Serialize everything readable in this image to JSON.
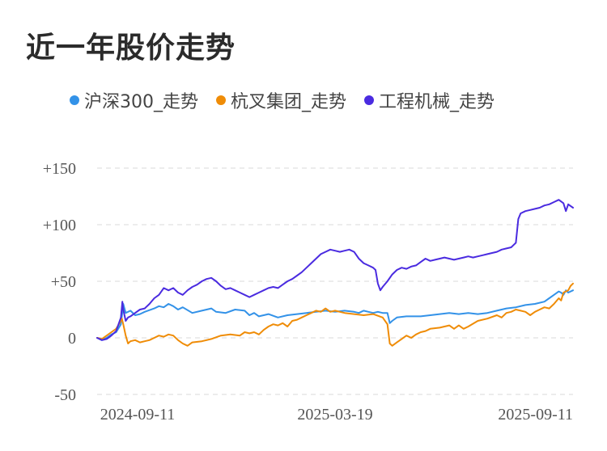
{
  "title": "近一年股价走势",
  "chart_data": {
    "type": "line",
    "y_ticks": [
      {
        "value": 150,
        "label": "+150"
      },
      {
        "value": 100,
        "label": "+100"
      },
      {
        "value": 50,
        "label": "+50"
      },
      {
        "value": 0,
        "label": "0"
      },
      {
        "value": -50,
        "label": "-50"
      }
    ],
    "x_ticks": [
      {
        "x": 0.085,
        "label": "2024-09-11"
      },
      {
        "x": 0.5,
        "label": "2025-03-19"
      },
      {
        "x": 1.0,
        "label": "2025-09-11"
      }
    ],
    "ylim": [
      -50,
      150
    ],
    "xlim": [
      0,
      1
    ],
    "grid": true,
    "legend_position": "top",
    "series": [
      {
        "name": "沪深300_走势",
        "color": "#3392e8",
        "points": [
          [
            0,
            0
          ],
          [
            0.01,
            -2
          ],
          [
            0.02,
            0
          ],
          [
            0.03,
            3
          ],
          [
            0.04,
            5
          ],
          [
            0.05,
            12
          ],
          [
            0.055,
            30
          ],
          [
            0.06,
            22
          ],
          [
            0.07,
            24
          ],
          [
            0.08,
            20
          ],
          [
            0.09,
            21
          ],
          [
            0.1,
            23
          ],
          [
            0.12,
            26
          ],
          [
            0.13,
            28
          ],
          [
            0.14,
            27
          ],
          [
            0.15,
            30
          ],
          [
            0.16,
            28
          ],
          [
            0.17,
            25
          ],
          [
            0.18,
            27
          ],
          [
            0.2,
            22
          ],
          [
            0.22,
            24
          ],
          [
            0.24,
            26
          ],
          [
            0.25,
            23
          ],
          [
            0.27,
            22
          ],
          [
            0.29,
            25
          ],
          [
            0.31,
            24
          ],
          [
            0.32,
            20
          ],
          [
            0.33,
            22
          ],
          [
            0.34,
            19
          ],
          [
            0.36,
            21
          ],
          [
            0.38,
            18
          ],
          [
            0.4,
            20
          ],
          [
            0.42,
            21
          ],
          [
            0.44,
            22
          ],
          [
            0.46,
            23
          ],
          [
            0.48,
            24
          ],
          [
            0.5,
            23
          ],
          [
            0.52,
            24
          ],
          [
            0.54,
            23
          ],
          [
            0.55,
            22
          ],
          [
            0.56,
            24
          ],
          [
            0.57,
            23
          ],
          [
            0.58,
            22
          ],
          [
            0.59,
            23
          ],
          [
            0.6,
            22
          ],
          [
            0.61,
            22
          ],
          [
            0.615,
            13
          ],
          [
            0.62,
            15
          ],
          [
            0.63,
            18
          ],
          [
            0.65,
            19
          ],
          [
            0.68,
            19
          ],
          [
            0.7,
            20
          ],
          [
            0.72,
            21
          ],
          [
            0.74,
            22
          ],
          [
            0.76,
            21
          ],
          [
            0.78,
            22
          ],
          [
            0.8,
            21
          ],
          [
            0.82,
            22
          ],
          [
            0.84,
            24
          ],
          [
            0.86,
            26
          ],
          [
            0.88,
            27
          ],
          [
            0.9,
            29
          ],
          [
            0.92,
            30
          ],
          [
            0.94,
            32
          ],
          [
            0.95,
            35
          ],
          [
            0.96,
            38
          ],
          [
            0.97,
            41
          ],
          [
            0.975,
            40
          ],
          [
            0.98,
            38
          ],
          [
            0.985,
            42
          ],
          [
            0.99,
            40
          ],
          [
            1.0,
            42
          ]
        ]
      },
      {
        "name": "杭叉集团_走势",
        "color": "#ef8c07",
        "points": [
          [
            0,
            0
          ],
          [
            0.01,
            -1
          ],
          [
            0.02,
            2
          ],
          [
            0.03,
            5
          ],
          [
            0.04,
            8
          ],
          [
            0.05,
            15
          ],
          [
            0.052,
            17
          ],
          [
            0.055,
            12
          ],
          [
            0.06,
            2
          ],
          [
            0.065,
            -5
          ],
          [
            0.07,
            -3
          ],
          [
            0.08,
            -2
          ],
          [
            0.09,
            -4
          ],
          [
            0.1,
            -3
          ],
          [
            0.11,
            -2
          ],
          [
            0.12,
            0
          ],
          [
            0.13,
            2
          ],
          [
            0.14,
            1
          ],
          [
            0.15,
            3
          ],
          [
            0.16,
            2
          ],
          [
            0.17,
            -2
          ],
          [
            0.18,
            -5
          ],
          [
            0.19,
            -7
          ],
          [
            0.2,
            -4
          ],
          [
            0.22,
            -3
          ],
          [
            0.24,
            -1
          ],
          [
            0.26,
            2
          ],
          [
            0.28,
            3
          ],
          [
            0.3,
            2
          ],
          [
            0.31,
            5
          ],
          [
            0.32,
            4
          ],
          [
            0.33,
            5
          ],
          [
            0.34,
            3
          ],
          [
            0.35,
            7
          ],
          [
            0.36,
            10
          ],
          [
            0.37,
            12
          ],
          [
            0.38,
            11
          ],
          [
            0.39,
            13
          ],
          [
            0.4,
            10
          ],
          [
            0.41,
            15
          ],
          [
            0.42,
            16
          ],
          [
            0.43,
            18
          ],
          [
            0.44,
            20
          ],
          [
            0.45,
            22
          ],
          [
            0.46,
            24
          ],
          [
            0.47,
            23
          ],
          [
            0.48,
            26
          ],
          [
            0.49,
            23
          ],
          [
            0.5,
            24
          ],
          [
            0.52,
            22
          ],
          [
            0.54,
            21
          ],
          [
            0.56,
            20
          ],
          [
            0.58,
            21
          ],
          [
            0.6,
            18
          ],
          [
            0.61,
            12
          ],
          [
            0.615,
            -5
          ],
          [
            0.62,
            -7
          ],
          [
            0.63,
            -4
          ],
          [
            0.64,
            -1
          ],
          [
            0.65,
            2
          ],
          [
            0.66,
            0
          ],
          [
            0.67,
            3
          ],
          [
            0.68,
            5
          ],
          [
            0.69,
            6
          ],
          [
            0.7,
            8
          ],
          [
            0.72,
            9
          ],
          [
            0.74,
            11
          ],
          [
            0.75,
            8
          ],
          [
            0.76,
            11
          ],
          [
            0.77,
            8
          ],
          [
            0.78,
            10
          ],
          [
            0.8,
            15
          ],
          [
            0.82,
            17
          ],
          [
            0.84,
            20
          ],
          [
            0.85,
            18
          ],
          [
            0.86,
            22
          ],
          [
            0.87,
            23
          ],
          [
            0.88,
            25
          ],
          [
            0.89,
            24
          ],
          [
            0.9,
            23
          ],
          [
            0.91,
            20
          ],
          [
            0.92,
            23
          ],
          [
            0.93,
            25
          ],
          [
            0.94,
            27
          ],
          [
            0.95,
            26
          ],
          [
            0.96,
            30
          ],
          [
            0.97,
            35
          ],
          [
            0.975,
            33
          ],
          [
            0.98,
            40
          ],
          [
            0.99,
            42
          ],
          [
            0.995,
            46
          ],
          [
            1.0,
            48
          ]
        ]
      },
      {
        "name": "工程机械_走势",
        "color": "#4a2be0",
        "points": [
          [
            0,
            0
          ],
          [
            0.01,
            -2
          ],
          [
            0.02,
            -1
          ],
          [
            0.03,
            2
          ],
          [
            0.04,
            6
          ],
          [
            0.05,
            18
          ],
          [
            0.053,
            32
          ],
          [
            0.055,
            25
          ],
          [
            0.06,
            15
          ],
          [
            0.065,
            18
          ],
          [
            0.07,
            19
          ],
          [
            0.08,
            22
          ],
          [
            0.09,
            25
          ],
          [
            0.1,
            26
          ],
          [
            0.11,
            30
          ],
          [
            0.12,
            35
          ],
          [
            0.13,
            38
          ],
          [
            0.14,
            44
          ],
          [
            0.15,
            42
          ],
          [
            0.16,
            44
          ],
          [
            0.17,
            40
          ],
          [
            0.18,
            38
          ],
          [
            0.19,
            42
          ],
          [
            0.2,
            45
          ],
          [
            0.21,
            47
          ],
          [
            0.22,
            50
          ],
          [
            0.23,
            52
          ],
          [
            0.24,
            53
          ],
          [
            0.25,
            50
          ],
          [
            0.26,
            46
          ],
          [
            0.27,
            43
          ],
          [
            0.28,
            44
          ],
          [
            0.29,
            42
          ],
          [
            0.3,
            40
          ],
          [
            0.31,
            38
          ],
          [
            0.32,
            36
          ],
          [
            0.33,
            38
          ],
          [
            0.34,
            40
          ],
          [
            0.35,
            42
          ],
          [
            0.36,
            44
          ],
          [
            0.37,
            45
          ],
          [
            0.38,
            44
          ],
          [
            0.39,
            47
          ],
          [
            0.4,
            50
          ],
          [
            0.41,
            52
          ],
          [
            0.42,
            55
          ],
          [
            0.43,
            58
          ],
          [
            0.44,
            62
          ],
          [
            0.45,
            66
          ],
          [
            0.46,
            70
          ],
          [
            0.47,
            74
          ],
          [
            0.48,
            76
          ],
          [
            0.49,
            78
          ],
          [
            0.5,
            77
          ],
          [
            0.51,
            76
          ],
          [
            0.52,
            77
          ],
          [
            0.53,
            78
          ],
          [
            0.54,
            76
          ],
          [
            0.55,
            70
          ],
          [
            0.56,
            66
          ],
          [
            0.57,
            64
          ],
          [
            0.58,
            62
          ],
          [
            0.585,
            60
          ],
          [
            0.59,
            48
          ],
          [
            0.595,
            42
          ],
          [
            0.6,
            45
          ],
          [
            0.61,
            50
          ],
          [
            0.62,
            56
          ],
          [
            0.63,
            60
          ],
          [
            0.64,
            62
          ],
          [
            0.65,
            61
          ],
          [
            0.66,
            63
          ],
          [
            0.67,
            64
          ],
          [
            0.68,
            67
          ],
          [
            0.69,
            70
          ],
          [
            0.7,
            68
          ],
          [
            0.71,
            69
          ],
          [
            0.72,
            70
          ],
          [
            0.73,
            71
          ],
          [
            0.74,
            70
          ],
          [
            0.75,
            69
          ],
          [
            0.76,
            70
          ],
          [
            0.77,
            71
          ],
          [
            0.78,
            72
          ],
          [
            0.79,
            71
          ],
          [
            0.8,
            72
          ],
          [
            0.81,
            73
          ],
          [
            0.82,
            74
          ],
          [
            0.83,
            75
          ],
          [
            0.84,
            76
          ],
          [
            0.85,
            78
          ],
          [
            0.86,
            79
          ],
          [
            0.87,
            80
          ],
          [
            0.875,
            82
          ],
          [
            0.88,
            84
          ],
          [
            0.885,
            105
          ],
          [
            0.89,
            110
          ],
          [
            0.9,
            112
          ],
          [
            0.91,
            113
          ],
          [
            0.92,
            114
          ],
          [
            0.93,
            115
          ],
          [
            0.94,
            117
          ],
          [
            0.95,
            118
          ],
          [
            0.96,
            120
          ],
          [
            0.97,
            122
          ],
          [
            0.98,
            119
          ],
          [
            0.985,
            112
          ],
          [
            0.99,
            118
          ],
          [
            1.0,
            115
          ]
        ]
      }
    ]
  }
}
